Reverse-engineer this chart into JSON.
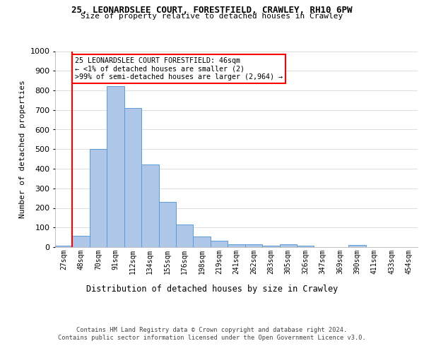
{
  "title_line1": "25, LEONARDSLEE COURT, FORESTFIELD, CRAWLEY, RH10 6PW",
  "title_line2": "Size of property relative to detached houses in Crawley",
  "xlabel": "Distribution of detached houses by size in Crawley",
  "ylabel": "Number of detached properties",
  "footer_line1": "Contains HM Land Registry data © Crown copyright and database right 2024.",
  "footer_line2": "Contains public sector information licensed under the Open Government Licence v3.0.",
  "categories": [
    "27sqm",
    "48sqm",
    "70sqm",
    "91sqm",
    "112sqm",
    "134sqm",
    "155sqm",
    "176sqm",
    "198sqm",
    "219sqm",
    "241sqm",
    "262sqm",
    "283sqm",
    "305sqm",
    "326sqm",
    "347sqm",
    "369sqm",
    "390sqm",
    "411sqm",
    "433sqm",
    "454sqm"
  ],
  "bar_heights": [
    8,
    58,
    500,
    820,
    710,
    420,
    230,
    115,
    55,
    32,
    15,
    15,
    6,
    15,
    8,
    0,
    0,
    10,
    0,
    0,
    0
  ],
  "bar_color": "#aec6e8",
  "bar_edge_color": "#5b9bd5",
  "annotation_title": "25 LEONARDSLEE COURT FORESTFIELD: 46sqm",
  "annotation_line2": "← <1% of detached houses are smaller (2)",
  "annotation_line3": ">99% of semi-detached houses are larger (2,964) →",
  "ylim": [
    0,
    1000
  ],
  "yticks": [
    0,
    100,
    200,
    300,
    400,
    500,
    600,
    700,
    800,
    900,
    1000
  ],
  "background_color": "#ffffff",
  "grid_color": "#d0d0d0",
  "bar_color_highlight": "#aec6e8",
  "bar_edge_color_highlight": "#5b9bd5",
  "red_line_x": 0.5
}
